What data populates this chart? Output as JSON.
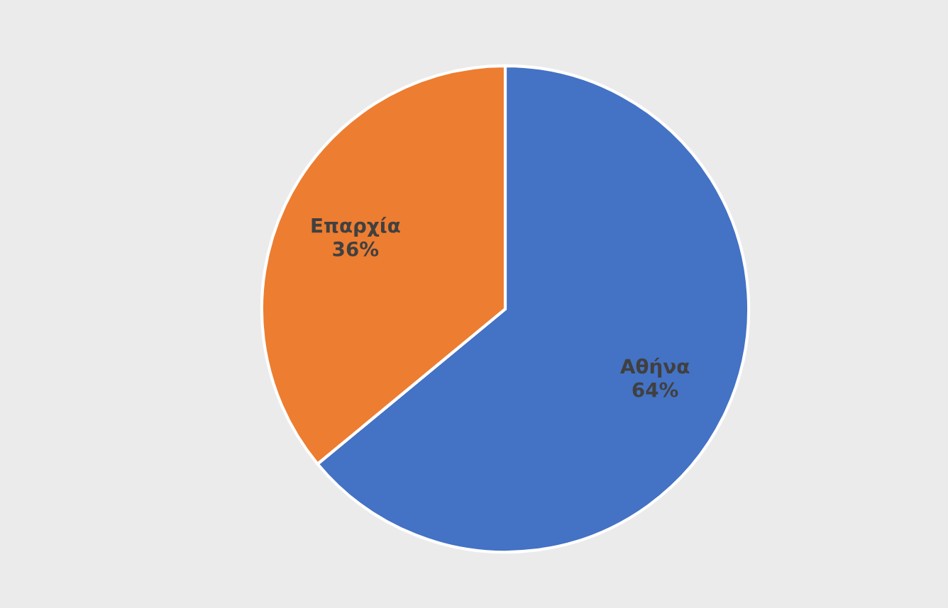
{
  "chart_data": {
    "type": "pie",
    "categories": [
      "Αθήνα",
      "Επαρχία"
    ],
    "values": [
      64,
      36
    ],
    "colors": [
      "#4472c4",
      "#ed7d31"
    ],
    "value_labels": [
      "64%",
      "36%"
    ]
  }
}
